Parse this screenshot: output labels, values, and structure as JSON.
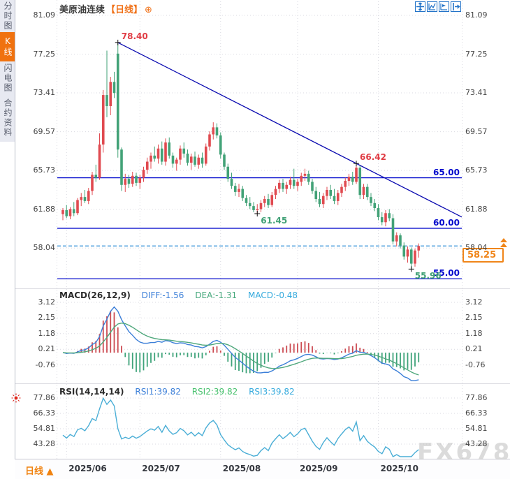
{
  "header": {
    "title": "美原油连续",
    "period_tag": "【日线】",
    "settings_glyph": "⊕"
  },
  "sidebar": {
    "items": [
      {
        "label": "分时图",
        "active": false
      },
      {
        "label": "K线图",
        "active": true
      },
      {
        "label": "闪电图",
        "active": false
      },
      {
        "label": "合约资料",
        "active": false
      }
    ]
  },
  "toolbar": {
    "icons": [
      "crosshair-icon",
      "chart-line-icon",
      "chart-flag-icon",
      "pan-right-icon"
    ]
  },
  "macd_panel": {
    "title": "MACD(26,12,9)",
    "diff": "DIFF:-1.56",
    "dea": "DEA:-1.31",
    "macd": "MACD:-0.48"
  },
  "rsi_panel": {
    "title": "RSI(14,14,14)",
    "r1": "RSI1:39.82",
    "r2": "RSI2:39.82",
    "r3": "RSI3:39.82"
  },
  "bottom_bar": {
    "period": "日线",
    "arrow": "▲"
  },
  "price_tag": {
    "label": "58.25"
  },
  "watermark": {
    "text": "FX678"
  },
  "colors": {
    "up": "#e04a50",
    "down": "#42a277",
    "level_line": "#0008cc",
    "trend_line": "#0a0ab0",
    "last_price_line": "#2e8fd6",
    "accent_orange": "#f0720f",
    "grid": "#d9d9e0",
    "diff_line": "#3c7fd8",
    "dea_line": "#4fa87c",
    "hist_pos": "#cc4b52",
    "hist_neg": "#3fa37a",
    "rsi_line": "#4aaed6",
    "diff_text": "#3c7fd8",
    "dea_text": "#46a87c",
    "macd_text": "#35aadd",
    "rsi1_text": "#3c7fd8",
    "rsi2_text": "#46c06c",
    "rsi3_text": "#35aadd"
  },
  "chart_data": {
    "type": "candlestick",
    "symbol": "美原油连续",
    "period": "日线",
    "price_axis_ticks": [
      "81.09",
      "77.25",
      "73.41",
      "69.57",
      "65.73",
      "61.88",
      "58.04"
    ],
    "month_ticks": [
      {
        "label": "2025/06",
        "index": 1
      },
      {
        "label": "2025/07",
        "index": 21
      },
      {
        "label": "2025/08",
        "index": 43
      },
      {
        "label": "2025/09",
        "index": 64
      },
      {
        "label": "2025/10",
        "index": 86
      }
    ],
    "support_resistance_levels": [
      {
        "value": 65.0,
        "label": "65.00"
      },
      {
        "value": 60.0,
        "label": "60.00"
      },
      {
        "value": 55.0,
        "label": "55.00"
      }
    ],
    "last_price": {
      "value": 58.25,
      "label": "58.25"
    },
    "price_markers": [
      {
        "index": 15,
        "at": "high",
        "label": "78.40",
        "color": "#e03c44"
      },
      {
        "index": 80,
        "at": "high",
        "label": "66.42",
        "color": "#e03c44"
      },
      {
        "index": 53,
        "at": "low",
        "label": "61.45",
        "color": "#42a277"
      },
      {
        "index": 95,
        "at": "low",
        "label": "55.96",
        "color": "#42a277"
      }
    ],
    "trend_line": {
      "from_marker_index": 15,
      "through_marker_index": 80,
      "note": "downtrend line from 78.40 high through 66.42 high"
    },
    "candles": [
      [
        61.4,
        62.0,
        60.8,
        61.8
      ],
      [
        61.8,
        62.3,
        61.0,
        61.2
      ],
      [
        61.2,
        62.1,
        60.9,
        61.9
      ],
      [
        61.9,
        62.6,
        61.2,
        61.5
      ],
      [
        61.5,
        63.0,
        61.3,
        62.8
      ],
      [
        62.8,
        63.5,
        62.2,
        63.1
      ],
      [
        63.1,
        63.8,
        62.5,
        62.7
      ],
      [
        62.7,
        64.0,
        62.4,
        63.7
      ],
      [
        63.7,
        65.6,
        63.3,
        65.3
      ],
      [
        65.3,
        66.3,
        64.6,
        65.0
      ],
      [
        65.0,
        69.4,
        64.8,
        68.3
      ],
      [
        68.3,
        73.7,
        67.5,
        73.2
      ],
      [
        73.2,
        77.6,
        71.0,
        72.1
      ],
      [
        72.1,
        75.0,
        71.2,
        74.5
      ],
      [
        74.5,
        75.5,
        72.9,
        73.4
      ],
      [
        77.3,
        78.4,
        67.0,
        67.8
      ],
      [
        67.8,
        68.0,
        63.7,
        64.3
      ],
      [
        64.3,
        65.4,
        63.6,
        64.9
      ],
      [
        64.9,
        65.3,
        64.0,
        64.4
      ],
      [
        64.4,
        65.6,
        64.1,
        65.2
      ],
      [
        65.2,
        65.5,
        64.2,
        64.5
      ],
      [
        64.5,
        65.3,
        63.9,
        65.0
      ],
      [
        65.0,
        66.1,
        64.6,
        65.8
      ],
      [
        65.8,
        67.0,
        65.4,
        66.6
      ],
      [
        66.6,
        67.5,
        65.9,
        67.2
      ],
      [
        67.2,
        68.1,
        66.6,
        66.9
      ],
      [
        66.9,
        68.3,
        66.4,
        67.9
      ],
      [
        67.9,
        68.6,
        66.3,
        66.6
      ],
      [
        66.6,
        68.9,
        66.2,
        68.5
      ],
      [
        68.5,
        69.0,
        66.9,
        67.2
      ],
      [
        67.2,
        67.5,
        66.0,
        66.4
      ],
      [
        66.4,
        67.0,
        65.7,
        66.8
      ],
      [
        66.8,
        68.2,
        66.3,
        67.9
      ],
      [
        67.9,
        68.5,
        67.0,
        67.4
      ],
      [
        67.4,
        67.8,
        66.2,
        66.5
      ],
      [
        66.5,
        67.4,
        65.8,
        67.1
      ],
      [
        67.1,
        67.6,
        66.1,
        66.3
      ],
      [
        66.3,
        67.3,
        65.9,
        67.0
      ],
      [
        67.0,
        67.5,
        66.0,
        66.4
      ],
      [
        66.4,
        68.4,
        66.2,
        68.1
      ],
      [
        68.1,
        69.6,
        67.7,
        69.3
      ],
      [
        69.3,
        70.5,
        68.8,
        70.0
      ],
      [
        70.0,
        70.4,
        68.9,
        69.2
      ],
      [
        69.2,
        69.5,
        66.9,
        67.3
      ],
      [
        67.3,
        67.5,
        65.8,
        66.1
      ],
      [
        66.1,
        66.4,
        64.6,
        64.9
      ],
      [
        64.9,
        65.5,
        63.9,
        64.2
      ],
      [
        64.2,
        64.5,
        63.2,
        63.6
      ],
      [
        63.6,
        64.4,
        63.1,
        63.9
      ],
      [
        63.9,
        64.2,
        62.7,
        63.0
      ],
      [
        63.0,
        63.3,
        62.2,
        62.5
      ],
      [
        62.5,
        63.1,
        61.9,
        62.2
      ],
      [
        62.2,
        62.6,
        61.6,
        61.8
      ],
      [
        61.8,
        62.4,
        61.45,
        61.9
      ],
      [
        61.9,
        62.8,
        61.6,
        62.5
      ],
      [
        62.5,
        63.2,
        62.1,
        62.9
      ],
      [
        62.9,
        63.4,
        62.0,
        62.3
      ],
      [
        62.3,
        63.6,
        62.1,
        63.3
      ],
      [
        63.3,
        64.2,
        62.9,
        63.9
      ],
      [
        63.9,
        64.8,
        63.5,
        64.5
      ],
      [
        64.5,
        64.9,
        63.6,
        63.9
      ],
      [
        63.9,
        64.6,
        63.4,
        64.3
      ],
      [
        64.3,
        65.1,
        63.9,
        64.8
      ],
      [
        64.8,
        65.9,
        63.9,
        64.2
      ],
      [
        64.2,
        64.9,
        63.7,
        64.6
      ],
      [
        64.6,
        65.5,
        64.2,
        65.2
      ],
      [
        65.2,
        65.9,
        64.7,
        65.4
      ],
      [
        65.4,
        65.7,
        64.3,
        64.6
      ],
      [
        64.6,
        64.9,
        63.4,
        63.7
      ],
      [
        63.7,
        64.1,
        62.6,
        62.9
      ],
      [
        62.9,
        63.6,
        62.1,
        62.4
      ],
      [
        62.4,
        63.5,
        62.0,
        63.2
      ],
      [
        63.2,
        64.1,
        62.8,
        63.8
      ],
      [
        63.8,
        64.3,
        62.9,
        63.2
      ],
      [
        63.2,
        63.9,
        62.4,
        62.7
      ],
      [
        62.7,
        63.8,
        62.3,
        63.5
      ],
      [
        63.5,
        64.4,
        63.1,
        64.1
      ],
      [
        64.1,
        65.0,
        63.7,
        64.7
      ],
      [
        64.7,
        65.4,
        64.2,
        65.1
      ],
      [
        65.1,
        65.6,
        64.3,
        64.6
      ],
      [
        64.6,
        66.42,
        64.4,
        66.0
      ],
      [
        66.0,
        66.2,
        62.9,
        63.3
      ],
      [
        63.3,
        64.4,
        62.9,
        64.1
      ],
      [
        64.1,
        64.4,
        62.8,
        63.1
      ],
      [
        63.1,
        63.5,
        62.2,
        62.5
      ],
      [
        62.5,
        62.9,
        61.7,
        62.0
      ],
      [
        62.0,
        62.4,
        60.8,
        61.1
      ],
      [
        61.1,
        61.6,
        60.3,
        60.6
      ],
      [
        60.6,
        61.8,
        60.2,
        61.5
      ],
      [
        61.5,
        61.9,
        60.7,
        61.0
      ],
      [
        61.0,
        61.4,
        58.4,
        58.7
      ],
      [
        58.7,
        59.6,
        58.2,
        59.3
      ],
      [
        59.3,
        59.5,
        58.0,
        58.3
      ],
      [
        58.3,
        58.6,
        56.9,
        57.2
      ],
      [
        57.2,
        58.2,
        56.6,
        57.9
      ],
      [
        57.9,
        58.1,
        55.96,
        56.5
      ],
      [
        56.5,
        58.0,
        56.2,
        57.8
      ],
      [
        57.8,
        58.5,
        57.1,
        58.25
      ]
    ],
    "macd": {
      "params": "(26,12,9)",
      "diff": -1.56,
      "dea": -1.31,
      "macd": -0.48,
      "ticks": [
        "3.12",
        "2.15",
        "1.18",
        "0.21",
        "-0.76"
      ]
    },
    "rsi": {
      "params": "(14,14,14)",
      "rsi1": 39.82,
      "rsi2": 39.82,
      "rsi3": 39.82,
      "ticks": [
        "77.86",
        "66.33",
        "54.81",
        "43.28"
      ]
    }
  }
}
